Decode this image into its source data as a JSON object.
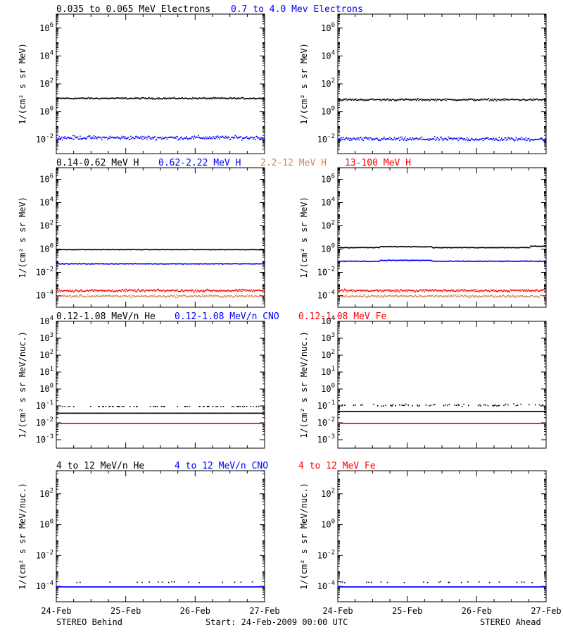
{
  "footer": {
    "left": "STEREO Behind",
    "center": "Start: 24-Feb-2009 00:00 UTC",
    "right": "STEREO Ahead"
  },
  "x_ticks": [
    "24-Feb",
    "25-Feb",
    "26-Feb",
    "27-Feb"
  ],
  "colors": {
    "black": "#000000",
    "blue": "#0000ff",
    "tan": "#d2875a",
    "red": "#ff0000"
  },
  "chart_data": [
    {
      "id": "electrons",
      "type": "scatter",
      "log_y": true,
      "ylim_exp": [
        -3,
        7
      ],
      "ytick_exps": [
        -2,
        0,
        2,
        4,
        6
      ],
      "ytick_style": "pow",
      "ylabel": "1/(cm² s sr MeV)",
      "legend": [
        {
          "text": "0.035 to 0.065 MeV Electrons",
          "color": "#000000"
        },
        {
          "text": "0.7 to 4.0 Mev Electrons",
          "color": "#0000ff"
        }
      ],
      "xlim_days": [
        0,
        3
      ],
      "x_ticks": [
        "24-Feb",
        "25-Feb",
        "26-Feb",
        "27-Feb"
      ],
      "series": [
        {
          "color": "#000000",
          "behind": {
            "level": 10,
            "scatter_dex": 0.08
          },
          "ahead": {
            "level": 8,
            "scatter_dex": 0.1
          }
        },
        {
          "color": "#0000ff",
          "behind": {
            "level": 0.015,
            "scatter_dex": 0.2
          },
          "ahead": {
            "level": 0.012,
            "scatter_dex": 0.2
          }
        }
      ]
    },
    {
      "id": "protons",
      "type": "scatter",
      "log_y": true,
      "ylim_exp": [
        -5,
        7
      ],
      "ytick_exps": [
        -4,
        -2,
        0,
        2,
        4,
        6
      ],
      "ytick_style": "pow",
      "ylabel": "1/(cm² s sr MeV)",
      "legend": [
        {
          "text": "0.14-0.62 MeV H",
          "color": "#000000"
        },
        {
          "text": "0.62-2.22 MeV H",
          "color": "#0000ff"
        },
        {
          "text": "2.2-12 MeV H",
          "color": "#d2875a"
        },
        {
          "text": "13-100 MeV H",
          "color": "#ff0000"
        }
      ],
      "xlim_days": [
        0,
        3
      ],
      "x_ticks": [
        "24-Feb",
        "25-Feb",
        "26-Feb",
        "27-Feb"
      ],
      "series": [
        {
          "color": "#000000",
          "behind": {
            "level": 1.0,
            "scatter_dex": 0.03
          },
          "ahead": {
            "level": 1.5,
            "scatter_dex": 0.04
          }
        },
        {
          "color": "#0000ff",
          "behind": {
            "level": 0.06,
            "scatter_dex": 0.05
          },
          "ahead": {
            "level": 0.1,
            "scatter_dex": 0.05
          }
        },
        {
          "color": "#d2875a",
          "behind": {
            "level": 0.0001,
            "scatter_dex": 0.15
          },
          "ahead": {
            "level": 0.0001,
            "scatter_dex": 0.15
          }
        },
        {
          "color": "#ff0000",
          "behind": {
            "level": 0.0003,
            "scatter_dex": 0.15
          },
          "ahead": {
            "level": 0.0003,
            "scatter_dex": 0.15
          }
        }
      ]
    },
    {
      "id": "ions-low",
      "type": "scatter",
      "log_y": true,
      "ylim_exp": [
        -3.5,
        4
      ],
      "ytick_exps": [
        -3,
        -2,
        -1,
        0,
        1,
        2,
        3,
        4
      ],
      "ytick_style": "pow",
      "ylabel": "1/(cm² s sr MeV/nuc.)",
      "legend": [
        {
          "text": "0.12-1.08 MeV/n He",
          "color": "#000000"
        },
        {
          "text": "0.12-1.08 MeV/n CNO",
          "color": "#0000ff"
        },
        {
          "text": "0.12-1.08 MeV Fe",
          "color": "#ff0000"
        }
      ],
      "xlim_days": [
        0,
        3
      ],
      "x_ticks": [
        "24-Feb",
        "25-Feb",
        "26-Feb",
        "27-Feb"
      ],
      "series": [
        {
          "color": "#000000",
          "behind": {
            "level": 0.04,
            "scatter_dex": 0.0
          },
          "ahead": {
            "level": 0.05,
            "scatter_dex": 0.0
          }
        },
        {
          "color": "#000000",
          "behind": {
            "level": 0.1,
            "scatter_dex": 0.0
          },
          "ahead": {
            "level": 0.12,
            "scatter_dex": 0.1
          }
        },
        {
          "color": "#0000ff",
          "behind": {
            "level": 0.01,
            "scatter_dex": 0.0
          },
          "ahead": {
            "level": 0.01,
            "scatter_dex": 0.0
          }
        },
        {
          "color": "#ff0000",
          "behind": {
            "level": 0.01,
            "scatter_dex": 0.0
          },
          "ahead": {
            "level": 0.01,
            "scatter_dex": 0.0
          }
        }
      ]
    },
    {
      "id": "ions-high",
      "type": "scatter",
      "log_y": true,
      "ylim_exp": [
        -5,
        3.5
      ],
      "ytick_exps": [
        -4,
        -2,
        0,
        2
      ],
      "ytick_style": "pow",
      "ylabel": "1/(cm² s sr MeV/nuc.)",
      "legend": [
        {
          "text": "4 to 12 MeV/n He",
          "color": "#000000"
        },
        {
          "text": "4 to 12 MeV/n CNO",
          "color": "#0000ff"
        },
        {
          "text": "4 to 12 MeV Fe",
          "color": "#ff0000"
        }
      ],
      "xlim_days": [
        0,
        3
      ],
      "x_ticks": [
        "24-Feb",
        "25-Feb",
        "26-Feb",
        "27-Feb"
      ],
      "series": [
        {
          "color": "#0000ff",
          "behind": {
            "level": 0.0001,
            "scatter_dex": 0.0
          },
          "ahead": {
            "level": 0.0001,
            "scatter_dex": 0.0
          }
        },
        {
          "color": "#000000",
          "behind": {
            "level": 0.0002,
            "scatter_dex": 0.05
          },
          "ahead": {
            "level": 0.0002,
            "scatter_dex": 0.05
          }
        }
      ]
    }
  ]
}
